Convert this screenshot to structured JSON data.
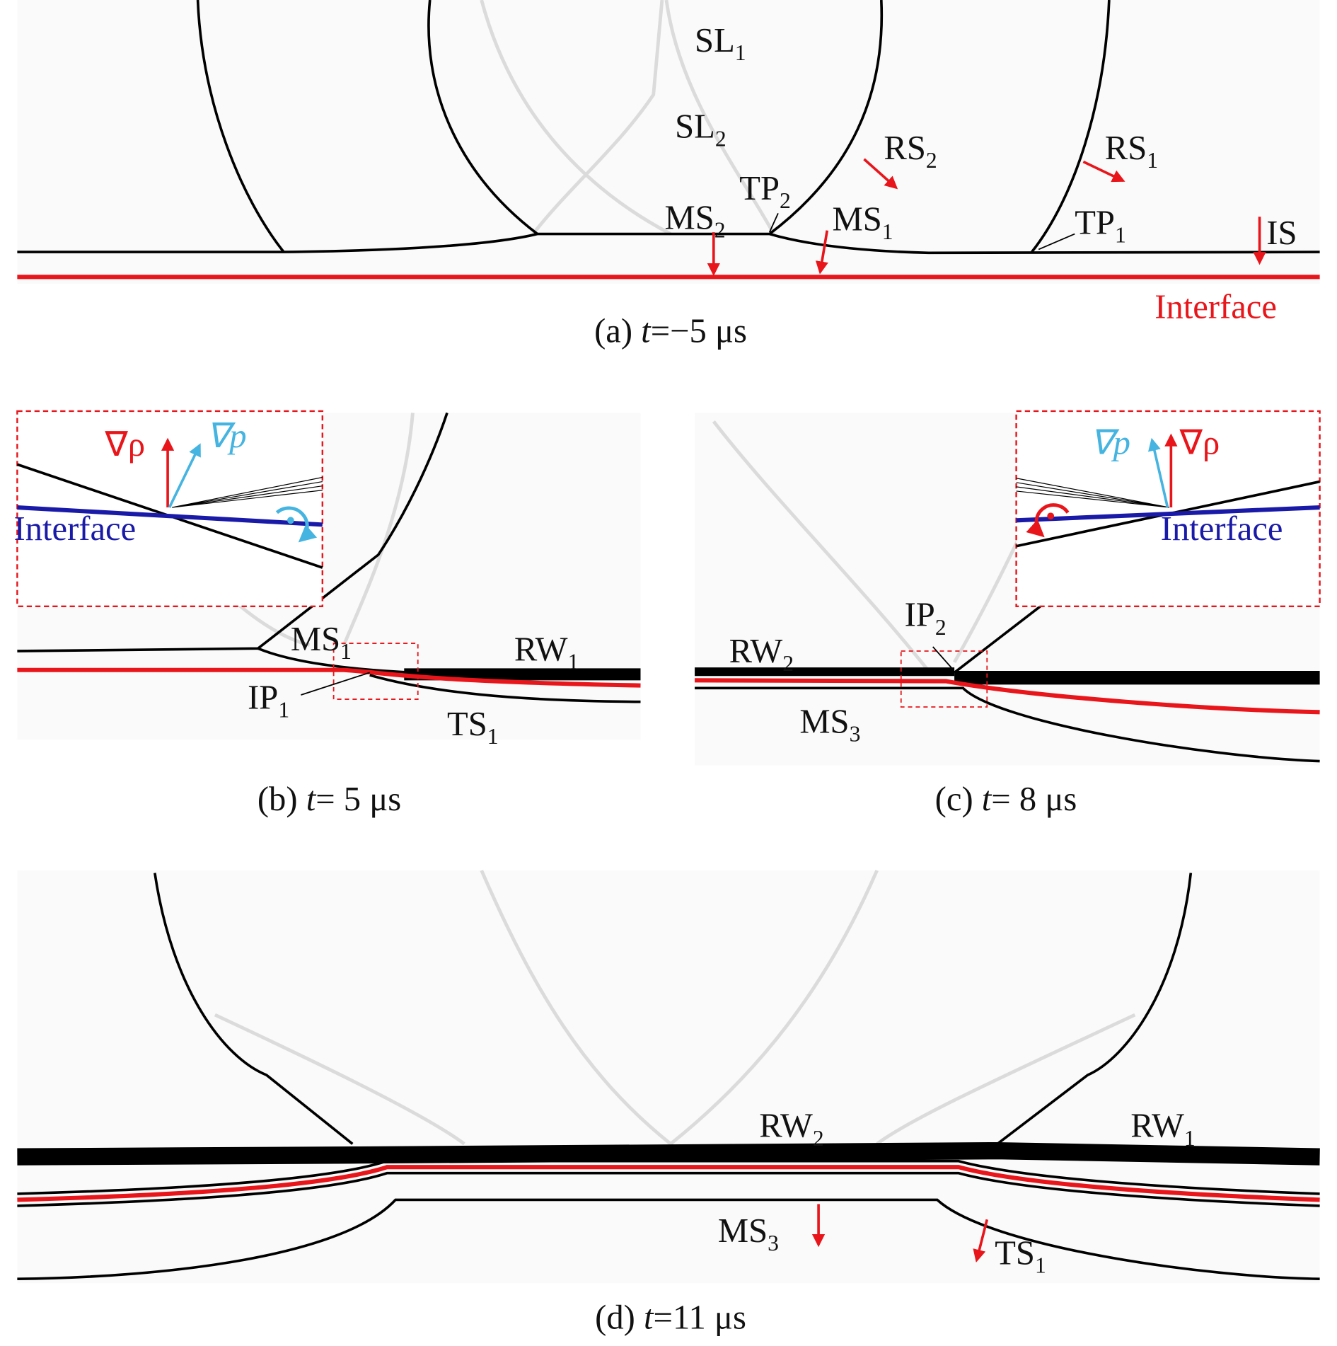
{
  "panels": [
    {
      "caption": {
        "label": "(a)",
        "var": "t",
        "value": "=−5 μs"
      },
      "labels": [
        {
          "text": "SL",
          "sub": "1"
        },
        {
          "text": "SL",
          "sub": "2"
        },
        {
          "text": "RS",
          "sub": "2"
        },
        {
          "text": "RS",
          "sub": "1"
        },
        {
          "text": "TP",
          "sub": "2"
        },
        {
          "text": "MS",
          "sub": "2"
        },
        {
          "text": "MS",
          "sub": "1"
        },
        {
          "text": "TP",
          "sub": "1"
        },
        {
          "text": "IS"
        },
        {
          "text": "Interface"
        }
      ]
    },
    {
      "caption": {
        "label": "(b)",
        "var": "t",
        "value": "= 5 μs"
      },
      "labels": [
        {
          "text": "∇ρ"
        },
        {
          "text": "∇p"
        },
        {
          "text": "Interface"
        },
        {
          "text": "MS",
          "sub": "1"
        },
        {
          "text": "RW",
          "sub": "1"
        },
        {
          "text": "IP",
          "sub": "1"
        },
        {
          "text": "TS",
          "sub": "1"
        }
      ]
    },
    {
      "caption": {
        "label": "(c)",
        "var": "t",
        "value": "= 8 μs"
      },
      "labels": [
        {
          "text": "∇p"
        },
        {
          "text": "∇ρ"
        },
        {
          "text": "Interface"
        },
        {
          "text": "IP",
          "sub": "2"
        },
        {
          "text": "RW",
          "sub": "2"
        },
        {
          "text": "MS",
          "sub": "3"
        }
      ]
    },
    {
      "caption": {
        "label": "(d)",
        "var": "t",
        "value": "=11 μs"
      },
      "labels": [
        {
          "text": "RW",
          "sub": "2"
        },
        {
          "text": "RW",
          "sub": "1"
        },
        {
          "text": "MS",
          "sub": "3"
        },
        {
          "text": "TS",
          "sub": "1"
        }
      ]
    }
  ]
}
